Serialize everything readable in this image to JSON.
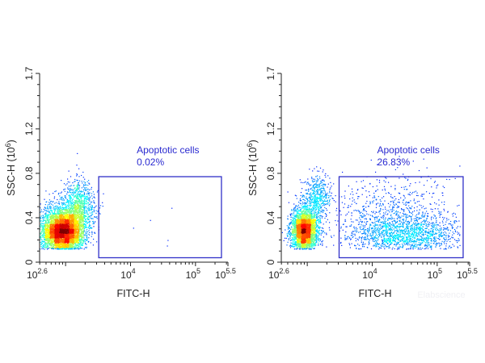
{
  "chart_data": [
    {
      "type": "scatter",
      "subtype": "density-dot-plot",
      "xlabel": "FITC-H",
      "ylabel": "SSC-H",
      "ylabel_unit_base": "10",
      "ylabel_unit_exp": "6",
      "x_scale": "log",
      "xlim_log10": [
        2.6,
        5.5
      ],
      "x_ticks": [
        {
          "base": "10",
          "exp": "2.6",
          "log10": 2.6
        },
        {
          "base": "10",
          "exp": "4",
          "log10": 4
        },
        {
          "base": "10",
          "exp": "5",
          "log10": 5
        },
        {
          "base": "10",
          "exp": "5.5",
          "log10": 5.5
        }
      ],
      "ylim": [
        0,
        1.7
      ],
      "y_ticks": [
        "0",
        "0.4",
        "0.8",
        "1.2",
        "1.7"
      ],
      "gate": {
        "name": "Apoptotic cells",
        "percent": "0.02%",
        "x_log10": [
          3.51,
          5.4
        ],
        "y": [
          0.04,
          0.77
        ]
      },
      "populations": [
        {
          "fitc_log10": 2.95,
          "ssc": 0.28,
          "sd_log10": 0.17,
          "sd_ssc": 0.085,
          "weight": 0.85
        },
        {
          "fitc_log10": 3.2,
          "ssc": 0.5,
          "sd_log10": 0.12,
          "sd_ssc": 0.1,
          "weight": 0.15
        }
      ],
      "outliers": [
        [
          3.56,
          0.54
        ],
        [
          4.04,
          0.31
        ],
        [
          4.3,
          0.38
        ],
        [
          4.57,
          0.2
        ],
        [
          4.56,
          0.15
        ],
        [
          4.63,
          0.49
        ]
      ],
      "grid": false
    },
    {
      "type": "scatter",
      "subtype": "density-dot-plot",
      "xlabel": "FITC-H",
      "ylabel": "SSC-H",
      "ylabel_unit_base": "10",
      "ylabel_unit_exp": "6",
      "x_scale": "log",
      "xlim_log10": [
        2.6,
        5.5
      ],
      "x_ticks": [
        {
          "base": "10",
          "exp": "2.6",
          "log10": 2.6
        },
        {
          "base": "10",
          "exp": "4",
          "log10": 4
        },
        {
          "base": "10",
          "exp": "5",
          "log10": 5
        },
        {
          "base": "10",
          "exp": "5.5",
          "log10": 5.5
        }
      ],
      "ylim": [
        0,
        1.7
      ],
      "y_ticks": [
        "0",
        "0.4",
        "0.8",
        "1.2",
        "1.7"
      ],
      "gate": {
        "name": "Apoptotic cells",
        "percent": "26.83%",
        "x_log10": [
          3.49,
          5.4
        ],
        "y": [
          0.04,
          0.77
        ]
      },
      "populations": [
        {
          "fitc_log10": 2.95,
          "ssc": 0.29,
          "sd_log10": 0.1,
          "sd_ssc": 0.08,
          "weight": 0.55
        },
        {
          "fitc_log10": 3.15,
          "ssc": 0.58,
          "sd_log10": 0.1,
          "sd_ssc": 0.08,
          "weight": 0.08
        },
        {
          "fitc_log10": 4.5,
          "ssc": 0.25,
          "sd_log10": 0.45,
          "sd_ssc": 0.08,
          "weight": 0.27
        },
        {
          "fitc_log10": 4.3,
          "ssc": 0.45,
          "sd_log10": 0.5,
          "sd_ssc": 0.14,
          "weight": 0.1
        }
      ],
      "outliers": [],
      "grid": false
    }
  ],
  "watermark": "Elabscience",
  "colors": {
    "gate": "#3030c8",
    "axis": "#222222",
    "colormap": "jet"
  }
}
